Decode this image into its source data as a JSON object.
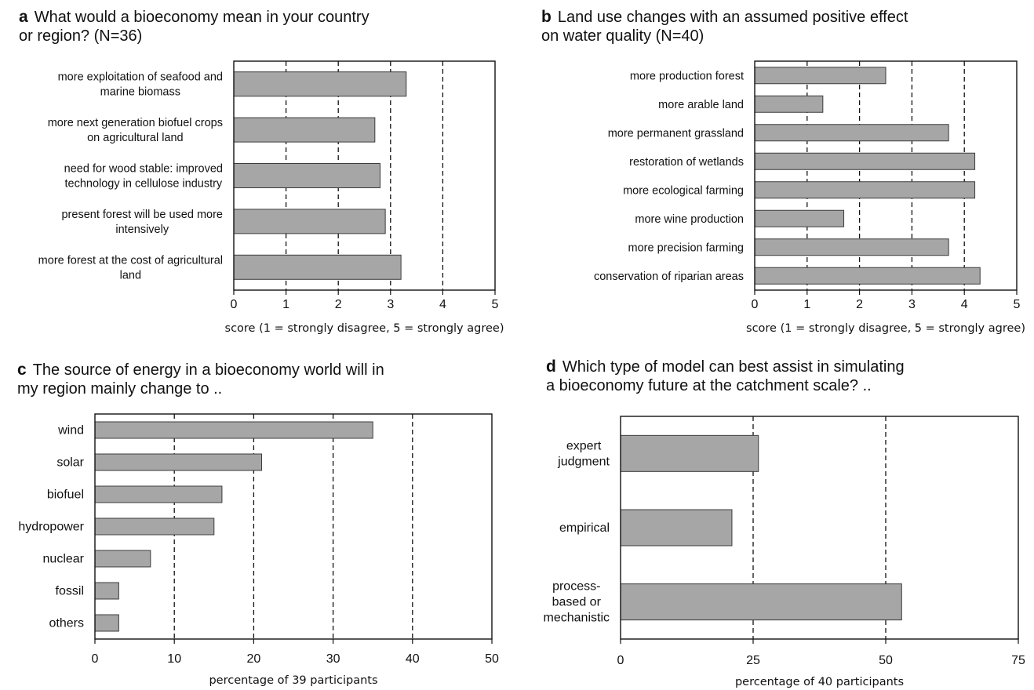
{
  "chart_data": [
    {
      "type": "bar",
      "panel_letter": "a",
      "title_lines": [
        "What would a bioeconomy mean in your country",
        "or region? (N=36)"
      ],
      "categories": [
        "more exploitation of seafood and|marine biomass",
        "more next generation biofuel crops|on agricultural land",
        "need for wood stable: improved|technology in cellulose industry",
        "present forest will be used more|intensively",
        "more forest at the cost of agricultural|land"
      ],
      "values": [
        3.3,
        2.7,
        2.8,
        2.9,
        3.2
      ],
      "xlabel": "score (1 = strongly disagree, 5 = strongly agree)",
      "xlim": [
        0,
        5
      ],
      "xticks": [
        "0",
        "1",
        "2",
        "3",
        "4",
        "5"
      ],
      "orientation": "horizontal",
      "grid": "vertical dashed"
    },
    {
      "type": "bar",
      "panel_letter": "b",
      "title_lines": [
        "Land use changes with an assumed positive effect",
        "on water quality  (N=40)"
      ],
      "categories": [
        "more production forest",
        "more arable land",
        "more permanent grassland",
        "restoration of wetlands",
        "more ecological farming",
        "more wine production",
        "more precision farming",
        "conservation of riparian areas"
      ],
      "values": [
        2.5,
        1.3,
        3.7,
        4.2,
        4.2,
        1.7,
        3.7,
        4.3
      ],
      "xlabel": "score (1 = strongly disagree, 5 = strongly agree)",
      "xlim": [
        0,
        5
      ],
      "xticks": [
        "0",
        "1",
        "2",
        "3",
        "4",
        "5"
      ],
      "orientation": "horizontal",
      "grid": "vertical dashed"
    },
    {
      "type": "bar",
      "panel_letter": "c",
      "title_lines": [
        "The source of energy in a bioeconomy world will in",
        "my region mainly change to .."
      ],
      "categories": [
        "wind",
        "solar",
        "biofuel",
        "hydropower",
        "nuclear",
        "fossil",
        "others"
      ],
      "values": [
        35,
        21,
        16,
        15,
        7,
        3,
        3
      ],
      "xlabel": "percentage of 39 participants",
      "xlim": [
        0,
        50
      ],
      "xticks": [
        "0",
        "10",
        "20",
        "30",
        "40",
        "50"
      ],
      "orientation": "horizontal",
      "grid": "vertical dashed"
    },
    {
      "type": "bar",
      "panel_letter": "d",
      "title_lines": [
        "Which type of model can best assist in simulating",
        "a bioeconomy future at the catchment scale? .."
      ],
      "categories": [
        "expert|judgment",
        "empirical",
        "process-|based or|mechanistic"
      ],
      "values": [
        26,
        21,
        53
      ],
      "xlabel": "percentage of 40 participants",
      "xlim": [
        0,
        75
      ],
      "xticks": [
        "0",
        "25",
        "50",
        "75"
      ],
      "orientation": "horizontal",
      "grid": "vertical dashed"
    }
  ]
}
